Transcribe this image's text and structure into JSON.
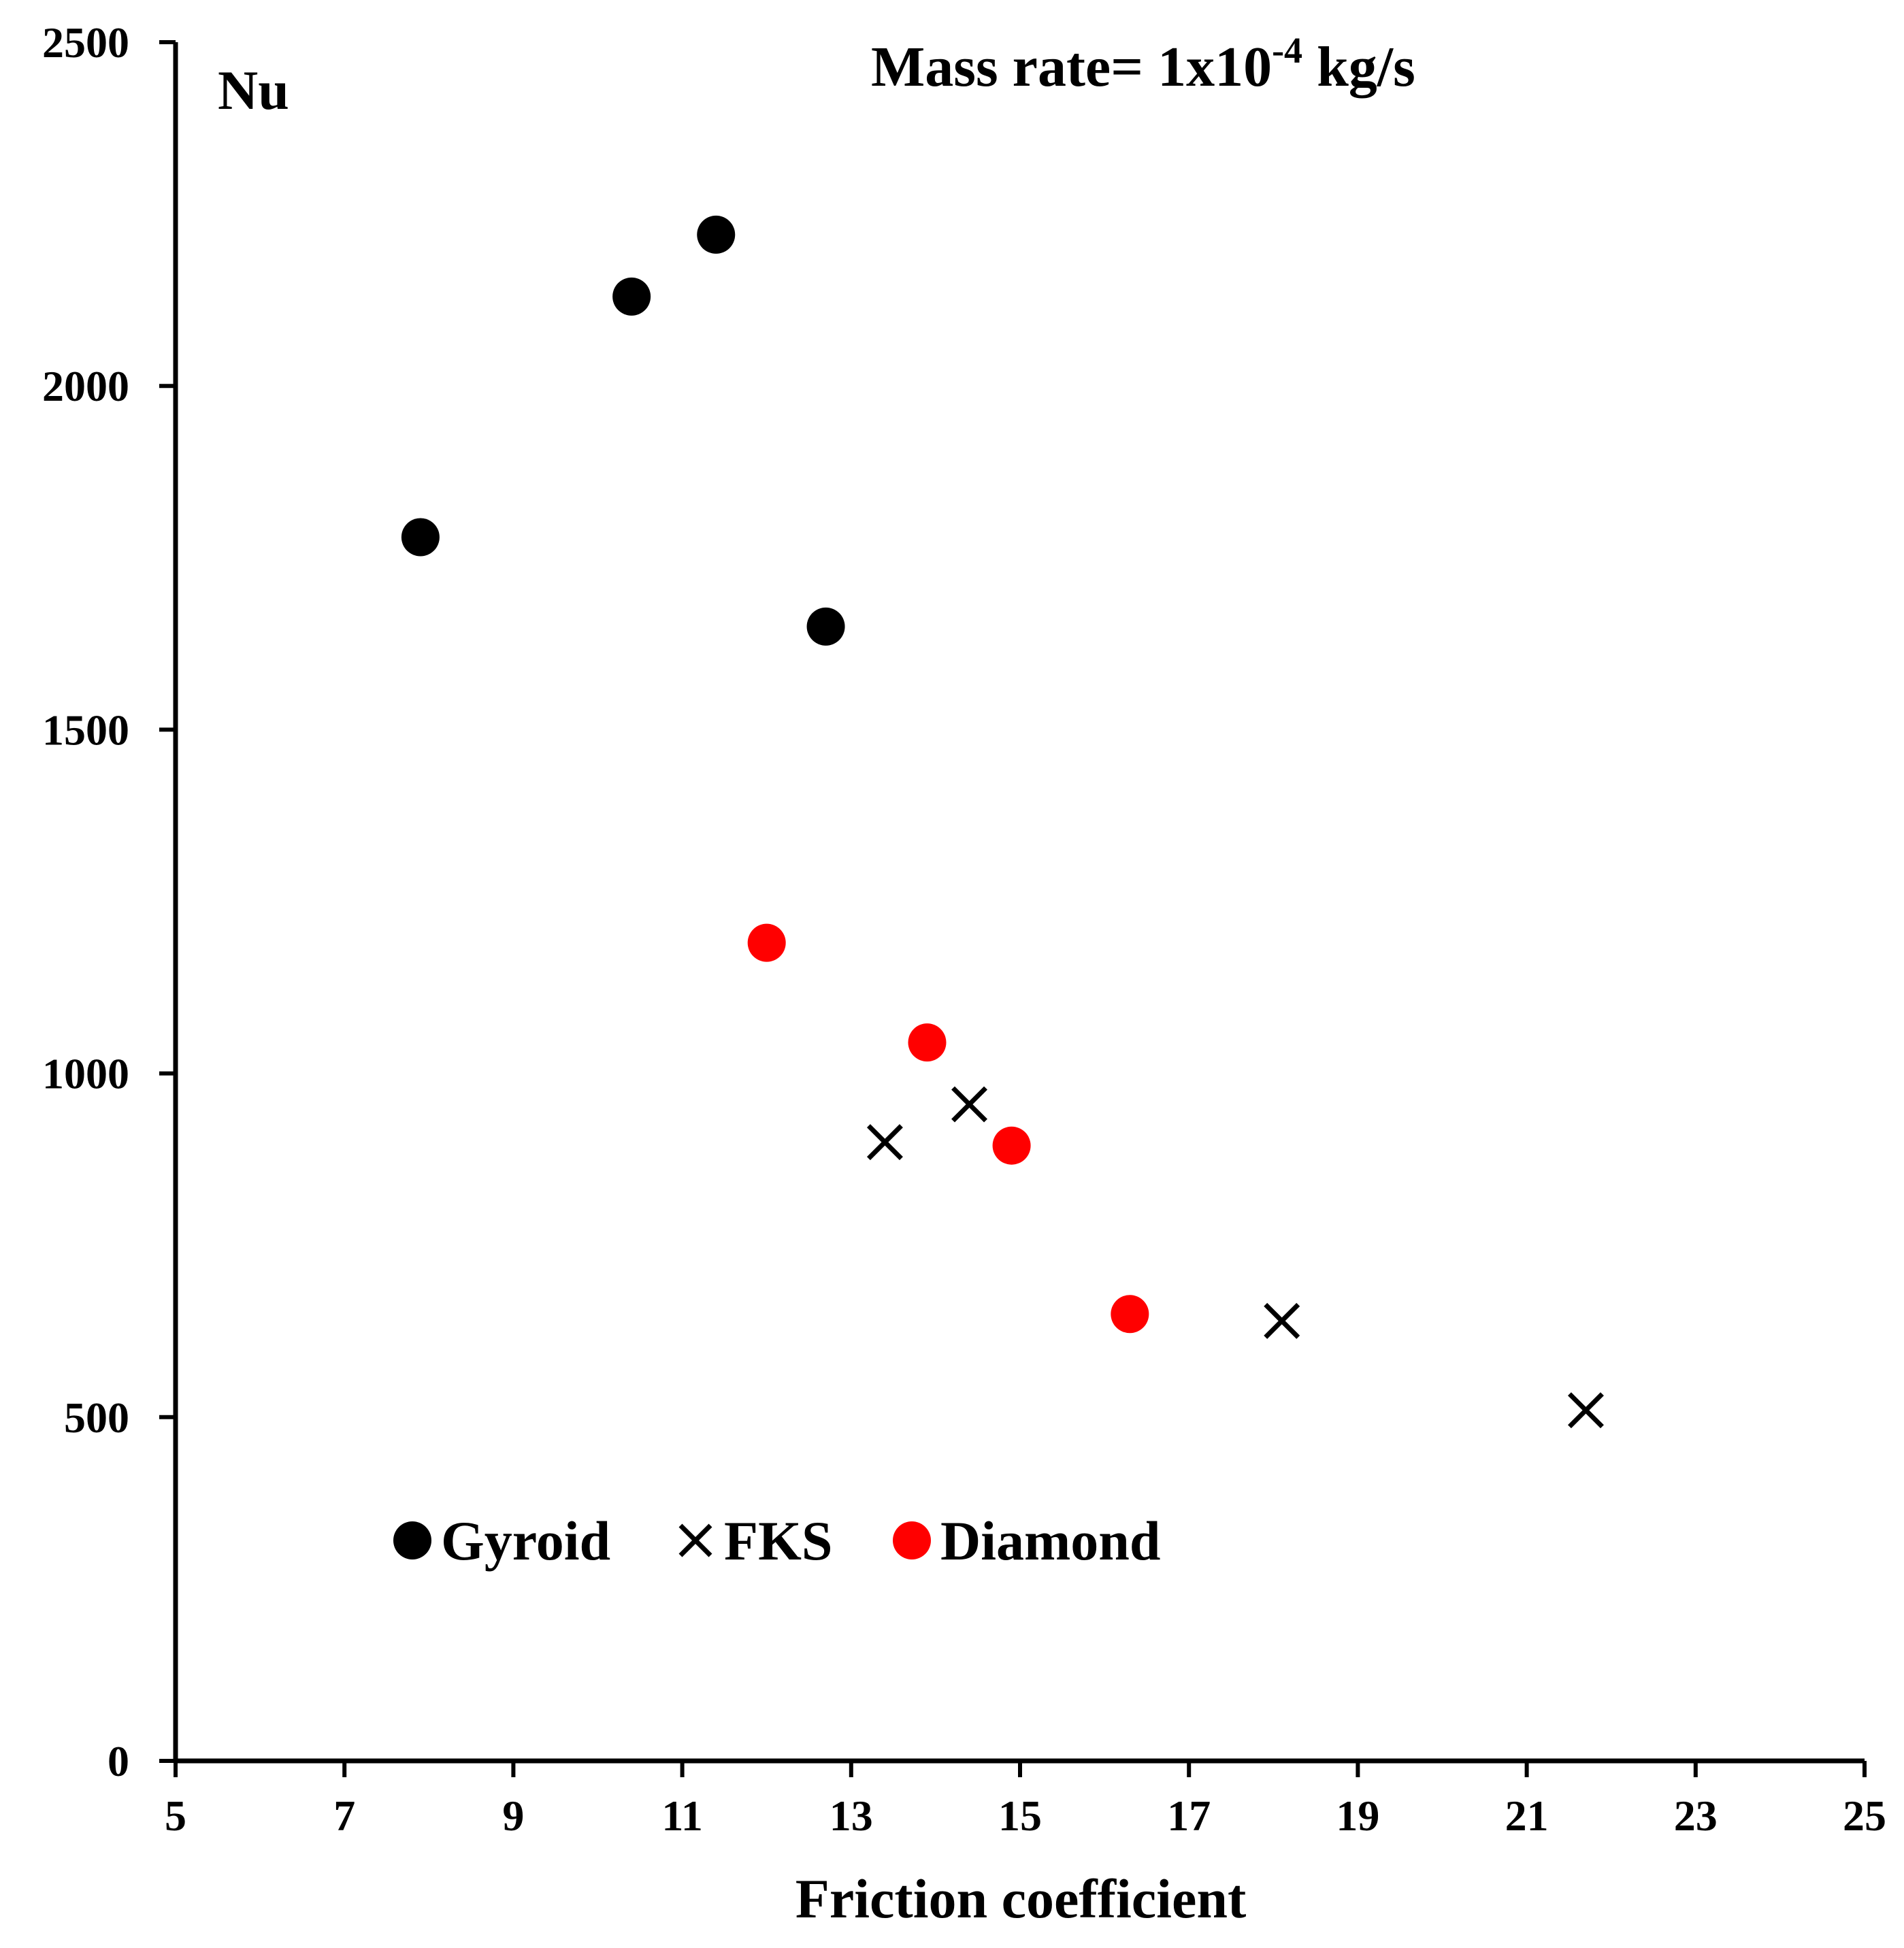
{
  "chart_data": {
    "type": "scatter",
    "title": "",
    "annotation": {
      "prefix": "Mass rate= 1x10",
      "superscript": "-4",
      "suffix": " kg/s"
    },
    "xlabel": "Friction coefficient",
    "ylabel": "Nu",
    "xlim": [
      5,
      25
    ],
    "ylim": [
      0,
      2500
    ],
    "xticks": [
      5,
      7,
      9,
      11,
      13,
      15,
      17,
      19,
      21,
      23,
      25
    ],
    "yticks": [
      0,
      500,
      1000,
      1500,
      2000,
      2500
    ],
    "grid": false,
    "legend_position": "bottom-left",
    "series": [
      {
        "name": "Gyroid",
        "marker": "circle",
        "color": "#000000",
        "points": [
          {
            "x": 7.9,
            "y": 1780
          },
          {
            "x": 10.4,
            "y": 2130
          },
          {
            "x": 11.4,
            "y": 2220
          },
          {
            "x": 12.7,
            "y": 1650
          }
        ]
      },
      {
        "name": "FKS",
        "marker": "x",
        "color": "#000000",
        "points": [
          {
            "x": 13.4,
            "y": 900
          },
          {
            "x": 14.4,
            "y": 955
          },
          {
            "x": 18.1,
            "y": 640
          },
          {
            "x": 21.7,
            "y": 510
          }
        ]
      },
      {
        "name": "Diamond",
        "marker": "circle",
        "color": "#ff0000",
        "points": [
          {
            "x": 12.0,
            "y": 1190
          },
          {
            "x": 13.9,
            "y": 1045
          },
          {
            "x": 14.9,
            "y": 895
          },
          {
            "x": 16.3,
            "y": 650
          }
        ]
      }
    ]
  }
}
